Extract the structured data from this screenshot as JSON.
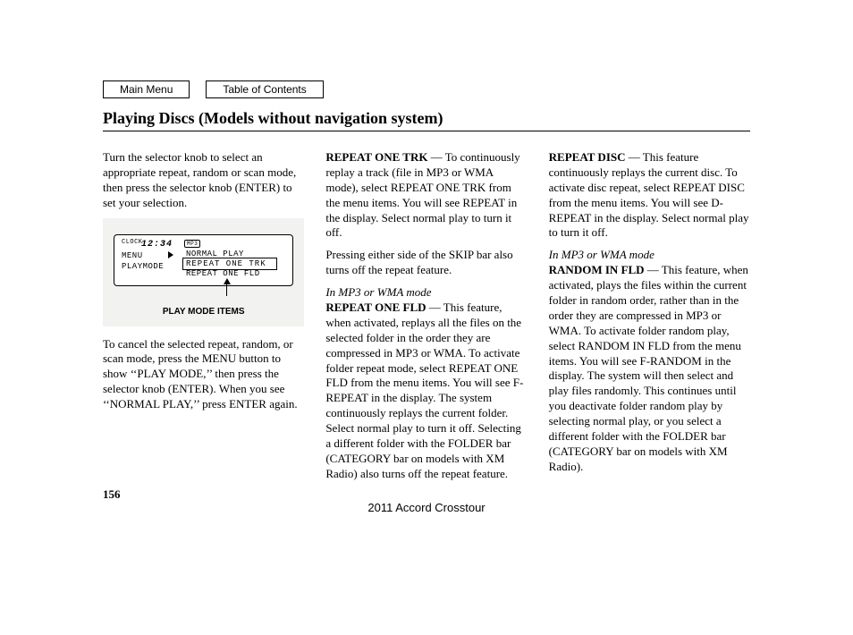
{
  "nav": {
    "main_menu": "Main Menu",
    "toc": "Table of Contents"
  },
  "title": "Playing Discs (Models without navigation system)",
  "col1": {
    "p1": "Turn the selector knob to select an appropriate repeat, random or scan mode, then press the selector knob (ENTER) to set your selection.",
    "diagram": {
      "clock_label": "CLOCK",
      "clock_time": "12:34",
      "mp3_badge": "MP3",
      "menu": "MENU",
      "playmode": "PLAYMODE",
      "normal": "NORMAL PLAY",
      "repeat_trk": "REPEAT ONE TRK",
      "repeat_fld": "REPEAT ONE FLD"
    },
    "caption": "PLAY MODE ITEMS",
    "p2": "To cancel the selected repeat, random, or scan mode, press the MENU button to show ‘‘PLAY MODE,’’ then press the selector knob (ENTER). When you see ‘‘NORMAL PLAY,’’ press ENTER again."
  },
  "col2": {
    "h1": "REPEAT ONE TRK",
    "p1": " — To continuously replay a track (file in MP3 or WMA mode), select REPEAT ONE TRK from the menu items. You will see REPEAT in the display. Select normal play to turn it off.",
    "p2": "Pressing either side of the SKIP bar also turns off the repeat feature.",
    "sub": "In MP3 or WMA mode",
    "h2": "REPEAT ONE FLD",
    "p3": " — This feature, when activated, replays all the files on the selected folder in the order they are compressed in MP3 or WMA. To activate folder repeat mode, select REPEAT ONE FLD from the menu items. You will see F-REPEAT in the display. The system continuously replays the current folder. Select normal play to turn it off. Selecting a different folder with the FOLDER bar (CATEGORY bar on models with XM Radio) also turns off the repeat feature."
  },
  "col3": {
    "h1": "REPEAT DISC",
    "p1": " — This feature continuously replays the current disc. To activate disc repeat, select REPEAT DISC from the menu items. You will see D-REPEAT in the display. Select normal play to turn it off.",
    "sub": "In MP3 or WMA mode",
    "h2": "RANDOM IN FLD",
    "p2": " — This feature, when activated, plays the files within the current folder in random order, rather than in the order they are compressed in MP3 or WMA. To activate folder random play, select RANDOM IN FLD from the menu items. You will see F-RANDOM in the display. The system will then select and play files randomly. This continues until you deactivate folder random play by selecting normal play, or you select a different folder with the FOLDER bar (CATEGORY bar on models with XM Radio)."
  },
  "page_number": "156",
  "footer": "2011 Accord Crosstour"
}
